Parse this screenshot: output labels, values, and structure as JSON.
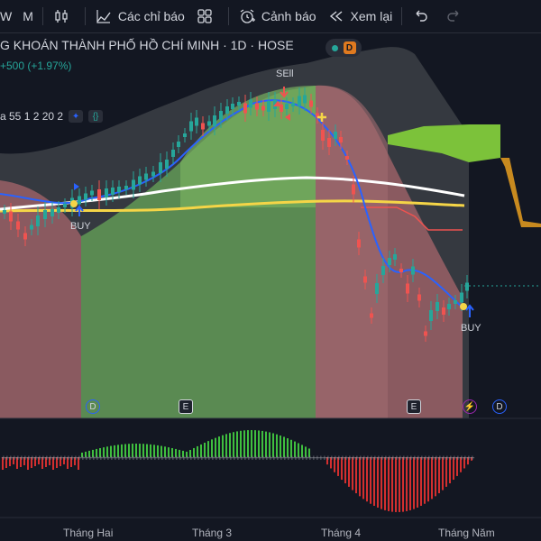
{
  "toolbar": {
    "symbol_partial": "W",
    "interval_label": "M",
    "indicators_label": "Các chỉ báo",
    "alerts_label": "Cảnh báo",
    "replay_label": "Xem lại"
  },
  "legend": {
    "title": "G KHOÁN THÀNH PHỐ HỒ CHÍ MINH · 1D · HOSE",
    "change": "+500 (+1.97%)",
    "indicator": "a 55 1 2 20 2",
    "session_badge": "D"
  },
  "signals": {
    "buy1": "BUY",
    "sell1": "SEll",
    "buy2": "BUY"
  },
  "events": [
    {
      "label": "D"
    },
    {
      "label": "E"
    },
    {
      "label": "E"
    },
    {
      "label": "⚡"
    },
    {
      "label": "D"
    }
  ],
  "time_axis": [
    "Tháng Hai",
    "Tháng 3",
    "Tháng 4",
    "Tháng Năm"
  ],
  "colors": {
    "up": "#26a69a",
    "down": "#ef5350",
    "ma_white": "#ffffff",
    "ma_yellow": "#f5d547",
    "ma_blue": "#2962ff",
    "cloud_green": "#7cc23a",
    "cloud_orange": "#c88a1f"
  }
}
